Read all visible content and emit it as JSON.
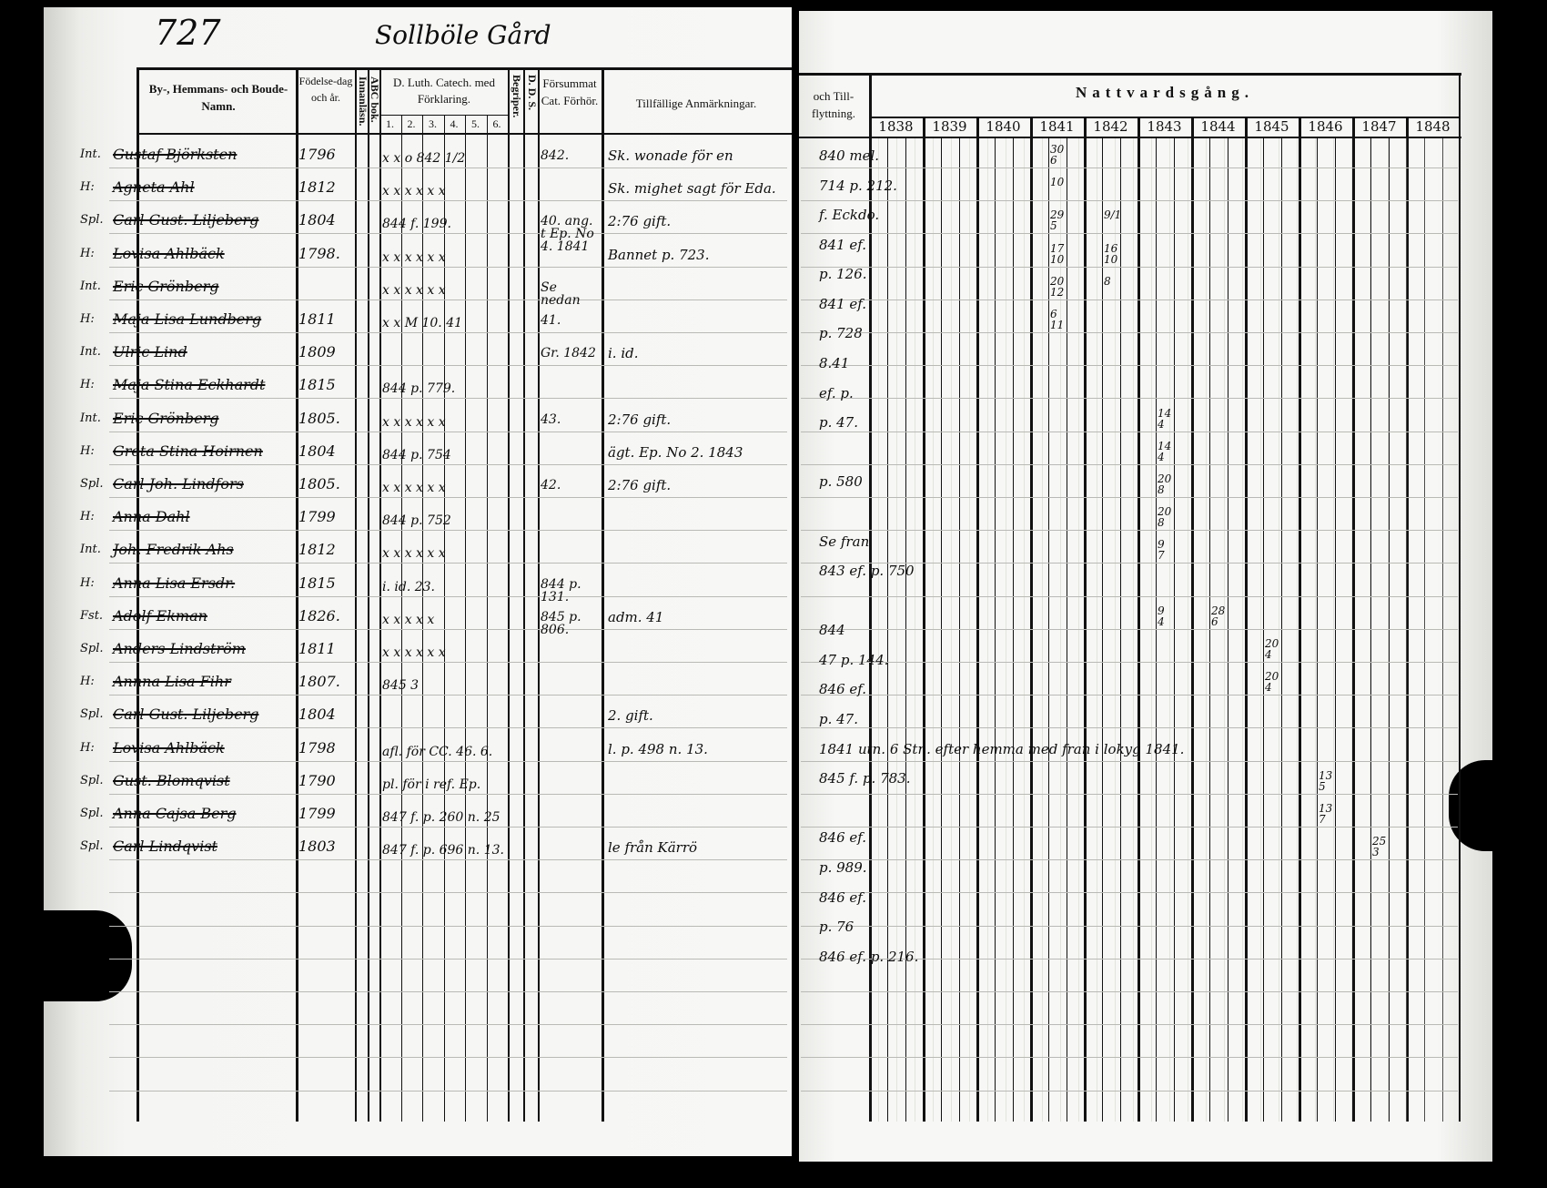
{
  "left_page": {
    "page_number": "727",
    "farm_title": "Sollböle Gård",
    "headers": {
      "name": "By-, Hemmans- och Boude-Namn.",
      "birth": "Födelse-dag och år.",
      "innanlasn": "Innanläsn.",
      "abc": "ABC bok.",
      "catech": "D. Luth. Catech. med Förklaring.",
      "catech_sub": [
        "1.",
        "2.",
        "3.",
        "4.",
        "5.",
        "6."
      ],
      "begriper": "Begriper.",
      "dds": "D. D. S.",
      "forsummat": "Försummat Cat. Förhör.",
      "remarks": "Tillfällige Anmärkningar."
    },
    "rows": [
      {
        "title": "Int.",
        "name": "Gustaf Björksten",
        "birth": "1796",
        "catech": "x x  o 842 1/2",
        "forsummat": "842.",
        "remark": "Sk. wonade för en"
      },
      {
        "title": "H:",
        "name": "Agneta Ahl",
        "birth": "1812",
        "catech": "x x x x x x",
        "forsummat": "",
        "remark": "Sk. mighet sagt för Eda."
      },
      {
        "title": "Spl.",
        "name": "Carl Gust. Liljeberg",
        "birth": "1804",
        "catech": "844 f. 199.",
        "forsummat": "40. ang. t Ep. No 4. 1841",
        "remark": "2:76 gift."
      },
      {
        "title": "H:",
        "name": "Lovisa Ahlbäck",
        "birth": "1798.",
        "catech": "x x x x x x",
        "forsummat": "",
        "remark": "Bannet p. 723."
      },
      {
        "title": "Int.",
        "name": "Eric Grönberg",
        "birth": "",
        "catech": "x x x x x x",
        "forsummat": "Se nedan",
        "remark": ""
      },
      {
        "title": "H:",
        "name": "Maja Lisa Lundberg",
        "birth": "1811",
        "catech": "x x M 10. 41",
        "forsummat": "41.",
        "remark": ""
      },
      {
        "title": "Int.",
        "name": "Ulric Lind",
        "birth": "1809",
        "catech": "",
        "forsummat": "Gr. 1842",
        "remark": "i. id."
      },
      {
        "title": "H:",
        "name": "Maja Stina Eckhardt",
        "birth": "1815",
        "catech": "844 p. 779.",
        "forsummat": "",
        "remark": ""
      },
      {
        "title": "Int.",
        "name": "Eric Grönberg",
        "birth": "1805.",
        "catech": "x x x x x x",
        "forsummat": "43.",
        "remark": "2:76 gift."
      },
      {
        "title": "H:",
        "name": "Greta Stina Hoirnen",
        "birth": "1804",
        "catech": "844 p. 754",
        "forsummat": "",
        "remark": "ägt. Ep. No 2. 1843"
      },
      {
        "title": "Spl.",
        "name": "Carl Joh. Lindfors",
        "birth": "1805.",
        "catech": "x x x x x x",
        "forsummat": "42.",
        "remark": "2:76 gift."
      },
      {
        "title": "H:",
        "name": "Anna Dahl",
        "birth": "1799",
        "catech": "844 p. 752",
        "forsummat": "",
        "remark": ""
      },
      {
        "title": "Int.",
        "name": "Joh. Fredrik Ahs",
        "birth": "1812",
        "catech": "x x x x x x",
        "forsummat": "",
        "remark": ""
      },
      {
        "title": "H:",
        "name": "Anna Lisa Ersdr.",
        "birth": "1815",
        "catech": "i. id. 23.",
        "forsummat": "844 p. 131.",
        "remark": ""
      },
      {
        "title": "Fst.",
        "name": "Adolf Ekman",
        "birth": "1826.",
        "catech": "x x x x x",
        "forsummat": "845 p. 806.",
        "remark": "adm. 41"
      },
      {
        "title": "Spl.",
        "name": "Anders Lindström",
        "birth": "1811",
        "catech": "x x x x x x",
        "forsummat": "",
        "remark": ""
      },
      {
        "title": "H:",
        "name": "Annna Lisa Fihr",
        "birth": "1807.",
        "catech": "845 3",
        "forsummat": "",
        "remark": ""
      },
      {
        "title": "Spl.",
        "name": "Carl Gust. Liljeberg",
        "birth": "1804",
        "catech": "",
        "forsummat": "",
        "remark": "2. gift."
      },
      {
        "title": "H:",
        "name": "Lovisa Ahlbäck",
        "birth": "1798",
        "catech": "afl. för CC. 46. 6.",
        "forsummat": "",
        "remark": "l. p. 498 n. 13."
      },
      {
        "title": "Spl.",
        "name": "Gust. Blomqvist",
        "birth": "1790",
        "catech": "pl. för i ref. Ep.",
        "forsummat": "",
        "remark": ""
      },
      {
        "title": "Spl.",
        "name": "Anna Cajsa Berg",
        "birth": "1799",
        "catech": "847 f. p. 260 n. 25",
        "forsummat": "",
        "remark": ""
      },
      {
        "title": "Spl.",
        "name": "Carl Lindqvist",
        "birth": "1803",
        "catech": "847 f. p. 696 n. 13.",
        "forsummat": "",
        "remark": "le från Kärrö"
      }
    ]
  },
  "right_page": {
    "headers": {
      "flyttning": "och Till-flyttning.",
      "nattvard": "Nattvardsgång."
    },
    "years": [
      "1838",
      "1839",
      "1840",
      "1841",
      "1842",
      "1843",
      "1844",
      "1845",
      "1846",
      "1847",
      "1848"
    ],
    "moves": [
      "840 mel.",
      "714 p. 212.",
      "f. Eckdo.",
      "841 ef.",
      "p. 126.",
      "841 ef.",
      "p. 728",
      "8.41",
      "ef. p.",
      "p. 47.",
      "",
      "p. 580",
      "",
      "Se fran",
      "843 ef. p. 750",
      "",
      "844",
      "47 p. 144.",
      "846 ef.",
      "p. 47.",
      "1841 utn. 6 Stn. efter hemma med fran i lokyg 1841.",
      "845 f. p. 783.",
      "",
      "846 ef.",
      "p. 989.",
      "846 ef.",
      "p. 76",
      "846 ef. p. 216."
    ],
    "communion_marks": [
      {
        "row": 0,
        "year": 3,
        "text": "30 6"
      },
      {
        "row": 1,
        "year": 3,
        "text": "10"
      },
      {
        "row": 2,
        "year": 3,
        "text": "29 5"
      },
      {
        "row": 2,
        "year": 4,
        "text": "9/1"
      },
      {
        "row": 3,
        "year": 3,
        "text": "17 10"
      },
      {
        "row": 3,
        "year": 4,
        "text": "16 10"
      },
      {
        "row": 4,
        "year": 3,
        "text": "20 12"
      },
      {
        "row": 4,
        "year": 4,
        "text": "8"
      },
      {
        "row": 5,
        "year": 3,
        "text": "6 11"
      },
      {
        "row": 8,
        "year": 5,
        "text": "14 4"
      },
      {
        "row": 9,
        "year": 5,
        "text": "14 4"
      },
      {
        "row": 10,
        "year": 5,
        "text": "20 8"
      },
      {
        "row": 11,
        "year": 5,
        "text": "20 8"
      },
      {
        "row": 12,
        "year": 5,
        "text": "9 7"
      },
      {
        "row": 14,
        "year": 5,
        "text": "9 4"
      },
      {
        "row": 14,
        "year": 6,
        "text": "28 6"
      },
      {
        "row": 15,
        "year": 7,
        "text": "20 4"
      },
      {
        "row": 16,
        "year": 7,
        "text": "20 4"
      },
      {
        "row": 19,
        "year": 8,
        "text": "13 5"
      },
      {
        "row": 20,
        "year": 8,
        "text": "13 7"
      },
      {
        "row": 21,
        "year": 9,
        "text": "25 3"
      }
    ]
  }
}
